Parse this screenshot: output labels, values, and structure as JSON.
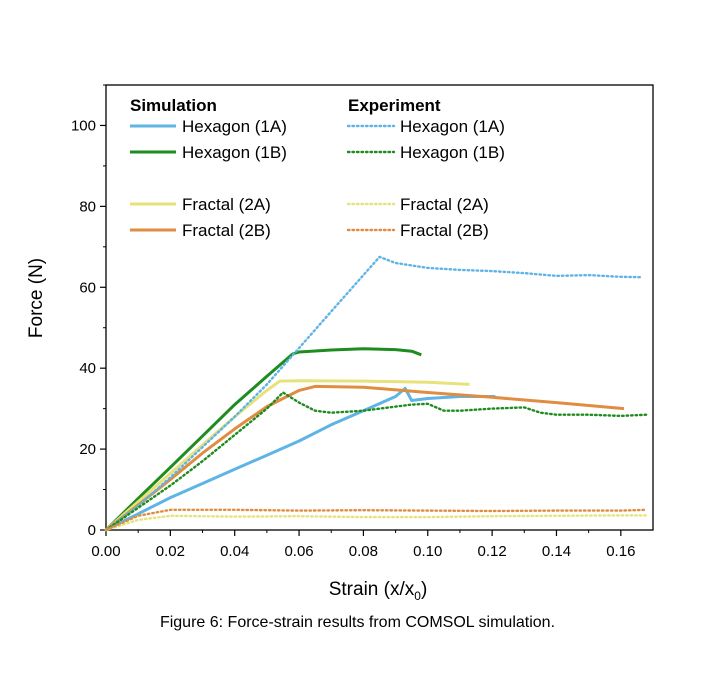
{
  "chart_data": {
    "type": "line",
    "xlabel_main": "Strain (x/x",
    "xlabel_sub": "0",
    "xlabel_end": ")",
    "ylabel": "Force (N)",
    "xlim": [
      0,
      0.17
    ],
    "ylim": [
      0,
      110
    ],
    "x_ticks": [
      0.0,
      0.02,
      0.04,
      0.06,
      0.08,
      0.1,
      0.12,
      0.14,
      0.16
    ],
    "x_tick_labels": [
      "0.00",
      "0.02",
      "0.04",
      "0.06",
      "0.08",
      "0.10",
      "0.12",
      "0.14",
      "0.16"
    ],
    "y_ticks": [
      0,
      20,
      40,
      60,
      80,
      100
    ],
    "y_tick_labels": [
      "0",
      "20",
      "40",
      "60",
      "80",
      "100"
    ],
    "grid": false,
    "legend": {
      "simulation_header": "Simulation",
      "experiment_header": "Experiment",
      "placement": "top"
    },
    "series": [
      {
        "name": "Hexagon (1A)",
        "group": "simulation",
        "style": "solid",
        "color": "#5fb4e6",
        "points": [
          [
            0,
            0
          ],
          [
            0.01,
            4
          ],
          [
            0.02,
            8
          ],
          [
            0.03,
            11.5
          ],
          [
            0.04,
            15
          ],
          [
            0.05,
            18.5
          ],
          [
            0.06,
            22
          ],
          [
            0.07,
            26
          ],
          [
            0.08,
            29.5
          ],
          [
            0.09,
            33
          ],
          [
            0.093,
            35
          ],
          [
            0.095,
            32
          ],
          [
            0.1,
            32.5
          ],
          [
            0.11,
            33
          ],
          [
            0.121,
            33
          ]
        ]
      },
      {
        "name": "Hexagon (1B)",
        "group": "simulation",
        "style": "solid",
        "color": "#1e8c1e",
        "points": [
          [
            0,
            0
          ],
          [
            0.01,
            7.8
          ],
          [
            0.02,
            15.5
          ],
          [
            0.03,
            23.2
          ],
          [
            0.04,
            31
          ],
          [
            0.05,
            38
          ],
          [
            0.058,
            43.5
          ],
          [
            0.06,
            44
          ],
          [
            0.07,
            44.5
          ],
          [
            0.08,
            44.8
          ],
          [
            0.09,
            44.6
          ],
          [
            0.095,
            44.2
          ],
          [
            0.098,
            43.3
          ]
        ]
      },
      {
        "name": "Fractal (2A)",
        "group": "simulation",
        "style": "solid",
        "color": "#e8e27a",
        "points": [
          [
            0,
            0
          ],
          [
            0.01,
            7
          ],
          [
            0.02,
            14
          ],
          [
            0.03,
            21
          ],
          [
            0.04,
            28
          ],
          [
            0.05,
            34.5
          ],
          [
            0.054,
            36.8
          ],
          [
            0.06,
            36.9
          ],
          [
            0.08,
            36.8
          ],
          [
            0.1,
            36.5
          ],
          [
            0.113,
            36
          ]
        ]
      },
      {
        "name": "Fractal (2B)",
        "group": "simulation",
        "style": "solid",
        "color": "#e08d42",
        "points": [
          [
            0,
            0
          ],
          [
            0.01,
            6.2
          ],
          [
            0.02,
            12.5
          ],
          [
            0.03,
            19
          ],
          [
            0.04,
            25
          ],
          [
            0.05,
            30.5
          ],
          [
            0.06,
            34.5
          ],
          [
            0.065,
            35.5
          ],
          [
            0.08,
            35.3
          ],
          [
            0.1,
            34
          ],
          [
            0.12,
            32.8
          ],
          [
            0.14,
            31.5
          ],
          [
            0.161,
            30
          ]
        ]
      },
      {
        "name": "Hexagon (1A)",
        "group": "experiment",
        "style": "dotted",
        "color": "#5fb4e6",
        "points": [
          [
            0,
            0
          ],
          [
            0.01,
            6
          ],
          [
            0.02,
            13
          ],
          [
            0.03,
            20.5
          ],
          [
            0.04,
            28
          ],
          [
            0.05,
            36
          ],
          [
            0.06,
            45
          ],
          [
            0.07,
            54
          ],
          [
            0.08,
            63
          ],
          [
            0.085,
            67.5
          ],
          [
            0.09,
            66
          ],
          [
            0.1,
            64.8
          ],
          [
            0.11,
            64.3
          ],
          [
            0.12,
            64
          ],
          [
            0.13,
            63.5
          ],
          [
            0.14,
            62.8
          ],
          [
            0.15,
            63
          ],
          [
            0.16,
            62.6
          ],
          [
            0.166,
            62.5
          ]
        ]
      },
      {
        "name": "Hexagon (1B)",
        "group": "experiment",
        "style": "dotted",
        "color": "#1e8c1e",
        "points": [
          [
            0,
            0
          ],
          [
            0.01,
            5.5
          ],
          [
            0.02,
            11
          ],
          [
            0.03,
            17
          ],
          [
            0.04,
            23.5
          ],
          [
            0.05,
            30
          ],
          [
            0.055,
            34
          ],
          [
            0.06,
            31.5
          ],
          [
            0.065,
            29.5
          ],
          [
            0.07,
            29
          ],
          [
            0.08,
            29.5
          ],
          [
            0.09,
            30.5
          ],
          [
            0.095,
            31
          ],
          [
            0.1,
            31.2
          ],
          [
            0.105,
            29.5
          ],
          [
            0.11,
            29.5
          ],
          [
            0.12,
            30
          ],
          [
            0.13,
            30.3
          ],
          [
            0.135,
            29
          ],
          [
            0.14,
            28.5
          ],
          [
            0.15,
            28.5
          ],
          [
            0.16,
            28.2
          ],
          [
            0.168,
            28.5
          ]
        ]
      },
      {
        "name": "Fractal (2A)",
        "group": "experiment",
        "style": "dotted",
        "color": "#e8e27a",
        "points": [
          [
            0,
            0
          ],
          [
            0.01,
            2.5
          ],
          [
            0.02,
            3.5
          ],
          [
            0.04,
            3.3
          ],
          [
            0.06,
            3.4
          ],
          [
            0.08,
            3.2
          ],
          [
            0.1,
            3.2
          ],
          [
            0.12,
            3.4
          ],
          [
            0.14,
            3.5
          ],
          [
            0.16,
            3.6
          ],
          [
            0.168,
            3.6
          ]
        ]
      },
      {
        "name": "Fractal (2B)",
        "group": "experiment",
        "style": "dotted",
        "color": "#e08d42",
        "points": [
          [
            0,
            0
          ],
          [
            0.01,
            3.5
          ],
          [
            0.02,
            5
          ],
          [
            0.04,
            5
          ],
          [
            0.06,
            4.8
          ],
          [
            0.08,
            4.9
          ],
          [
            0.1,
            4.8
          ],
          [
            0.12,
            4.7
          ],
          [
            0.14,
            4.8
          ],
          [
            0.16,
            4.8
          ],
          [
            0.168,
            5
          ]
        ]
      }
    ]
  },
  "caption": "Figure 6: Force-strain results from COMSOL simulation."
}
